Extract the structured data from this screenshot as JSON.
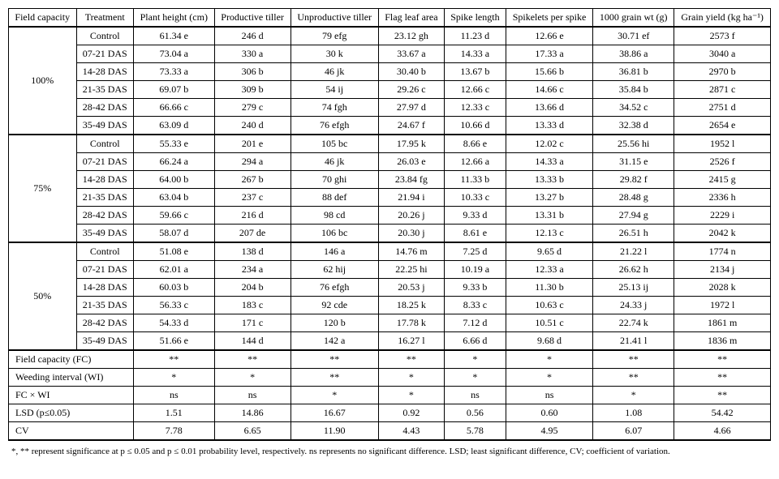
{
  "headers": {
    "c0": "Field capacity",
    "c1": "Treatment",
    "c2": "Plant height (cm)",
    "c3": "Productive tiller",
    "c4": "Unproductive tiller",
    "c5": "Flag leaf area",
    "c6": "Spike length",
    "c7": "Spikelets per spike",
    "c8": "1000 grain wt (g)",
    "c9": "Grain yield (kg ha⁻¹)"
  },
  "groups": [
    {
      "label": "100%",
      "rows": [
        {
          "t": "Control",
          "v": [
            "61.34 e",
            "246 d",
            "79 efg",
            "23.12 gh",
            "11.23 d",
            "12.66 e",
            "30.71 ef",
            "2573 f"
          ]
        },
        {
          "t": "07-21 DAS",
          "v": [
            "73.04 a",
            "330 a",
            "30 k",
            "33.67 a",
            "14.33 a",
            "17.33 a",
            "38.86 a",
            "3040 a"
          ]
        },
        {
          "t": "14-28 DAS",
          "v": [
            "73.33 a",
            "306 b",
            "46 jk",
            "30.40 b",
            "13.67 b",
            "15.66 b",
            "36.81 b",
            "2970 b"
          ]
        },
        {
          "t": "21-35 DAS",
          "v": [
            "69.07 b",
            "309 b",
            "54 ij",
            "29.26 c",
            "12.66 c",
            "14.66 c",
            "35.84 b",
            "2871 c"
          ]
        },
        {
          "t": "28-42 DAS",
          "v": [
            "66.66 c",
            "279 c",
            "74 fgh",
            "27.97 d",
            "12.33 c",
            "13.66 d",
            "34.52 c",
            "2751 d"
          ]
        },
        {
          "t": "35-49 DAS",
          "v": [
            "63.09 d",
            "240 d",
            "76 efgh",
            "24.67 f",
            "10.66 d",
            "13.33 d",
            "32.38 d",
            "2654 e"
          ]
        }
      ]
    },
    {
      "label": "75%",
      "rows": [
        {
          "t": "Control",
          "v": [
            "55.33 e",
            "201 e",
            "105 bc",
            "17.95 k",
            "8.66 e",
            "12.02 c",
            "25.56 hi",
            "1952 l"
          ]
        },
        {
          "t": "07-21 DAS",
          "v": [
            "66.24 a",
            "294 a",
            "46 jk",
            "26.03 e",
            "12.66 a",
            "14.33 a",
            "31.15 e",
            "2526 f"
          ]
        },
        {
          "t": "14-28 DAS",
          "v": [
            "64.00 b",
            "267 b",
            "70 ghi",
            "23.84 fg",
            "11.33 b",
            "13.33 b",
            "29.82 f",
            "2415 g"
          ]
        },
        {
          "t": "21-35 DAS",
          "v": [
            "63.04 b",
            "237 c",
            "88 def",
            "21.94 i",
            "10.33 c",
            "13.27 b",
            "28.48 g",
            "2336 h"
          ]
        },
        {
          "t": "28-42 DAS",
          "v": [
            "59.66 c",
            "216 d",
            "98 cd",
            "20.26 j",
            "9.33 d",
            "13.31 b",
            "27.94 g",
            "2229 i"
          ]
        },
        {
          "t": "35-49 DAS",
          "v": [
            "58.07 d",
            "207 de",
            "106 bc",
            "20.30 j",
            "8.61 e",
            "12.13 c",
            "26.51 h",
            "2042 k"
          ]
        }
      ]
    },
    {
      "label": "50%",
      "rows": [
        {
          "t": "Control",
          "v": [
            "51.08 e",
            "138 d",
            "146 a",
            "14.76 m",
            "7.25 d",
            "9.65 d",
            "21.22 l",
            "1774 n"
          ]
        },
        {
          "t": "07-21 DAS",
          "v": [
            "62.01 a",
            "234 a",
            "62 hij",
            "22.25 hi",
            "10.19 a",
            "12.33 a",
            "26.62 h",
            "2134 j"
          ]
        },
        {
          "t": "14-28 DAS",
          "v": [
            "60.03 b",
            "204 b",
            "76 efgh",
            "20.53 j",
            "9.33 b",
            "11.30 b",
            "25.13 ij",
            "2028 k"
          ]
        },
        {
          "t": "21-35 DAS",
          "v": [
            "56.33 c",
            "183 c",
            "92 cde",
            "18.25 k",
            "8.33 c",
            "10.63 c",
            "24.33 j",
            "1972 l"
          ]
        },
        {
          "t": "28-42 DAS",
          "v": [
            "54.33 d",
            "171 c",
            "120 b",
            "17.78 k",
            "7.12 d",
            "10.51 c",
            "22.74 k",
            "1861 m"
          ]
        },
        {
          "t": "35-49 DAS",
          "v": [
            "51.66 e",
            "144 d",
            "142 a",
            "16.27 l",
            "6.66 d",
            "9.68 d",
            "21.41 l",
            "1836 m"
          ]
        }
      ]
    }
  ],
  "stats": [
    {
      "label": "Field capacity (FC)",
      "v": [
        "**",
        "**",
        "**",
        "**",
        "*",
        "*",
        "**",
        "**"
      ]
    },
    {
      "label": "Weeding interval (WI)",
      "v": [
        "*",
        "*",
        "**",
        "*",
        "*",
        "*",
        "**",
        "**"
      ]
    },
    {
      "label": "FC × WI",
      "v": [
        "ns",
        "ns",
        "*",
        "*",
        "ns",
        "ns",
        "*",
        "**"
      ]
    },
    {
      "label": "LSD (p≤0.05)",
      "v": [
        "1.51",
        "14.86",
        "16.67",
        "0.92",
        "0.56",
        "0.60",
        "1.08",
        "54.42"
      ]
    },
    {
      "label": "CV",
      "v": [
        "7.78",
        "6.65",
        "11.90",
        "4.43",
        "5.78",
        "4.95",
        "6.07",
        "4.66"
      ]
    }
  ],
  "footnote": "*, ** represent significance at p ≤ 0.05 and p ≤ 0.01 probability level, respectively. ns represents no significant difference. LSD; least significant difference, CV; coefficient of variation."
}
